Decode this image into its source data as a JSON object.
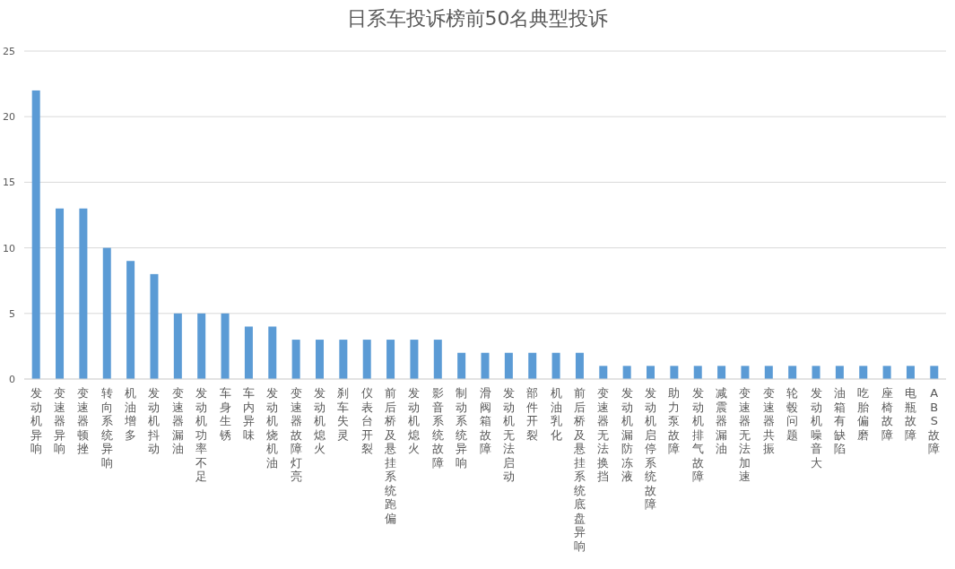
{
  "chart_data": {
    "type": "bar",
    "title": "日系车投诉榜前50名典型投诉",
    "categories": [
      "发动机异响",
      "变速器异响",
      "变速器顿挫",
      "转向系统异响",
      "机油增多",
      "发动机抖动",
      "变速器漏油",
      "发动机功率不足",
      "车身生锈",
      "车内异味",
      "发动机烧机油",
      "变速器故障灯亮",
      "发动机熄火",
      "刹车失灵",
      "仪表台开裂",
      "前后桥及悬挂系统跑偏",
      "发动机熄火",
      "影音系统故障",
      "制动系统异响",
      "滑阀箱故障",
      "发动机无法启动",
      "部件开裂",
      "机油乳化",
      "前后桥及悬挂系统底盘异响",
      "变速器无法换挡",
      "发动机漏防冻液",
      "发动机启停系统故障",
      "助力泵故障",
      "发动机排气故障",
      "减震器漏油",
      "变速器无法加速",
      "变速器共振",
      "轮毂问题",
      "发动机噪音大",
      "油箱有缺陷",
      "吃胎偏磨",
      "座椅故障",
      "电瓶故障",
      "ABS故障"
    ],
    "values": [
      22,
      13,
      13,
      10,
      9,
      8,
      5,
      5,
      5,
      4,
      4,
      3,
      3,
      3,
      3,
      3,
      3,
      3,
      2,
      2,
      2,
      2,
      2,
      2,
      1,
      1,
      1,
      1,
      1,
      1,
      1,
      1,
      1,
      1,
      1,
      1,
      1,
      1,
      1
    ],
    "color": "#5b9bd5",
    "ylim": [
      0,
      25
    ],
    "yticks": [
      0,
      5,
      10,
      15,
      20,
      25
    ],
    "grid": "y"
  }
}
